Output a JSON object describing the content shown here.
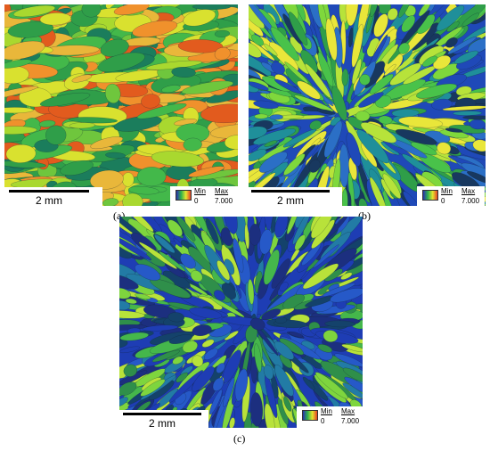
{
  "panels": [
    {
      "caption": "(a)",
      "scale_label": "2 mm",
      "legend": {
        "min_label": "Min",
        "max_label": "Max",
        "min_value": "0",
        "max_value": "7.000"
      },
      "palette": [
        "#2f9e49",
        "#43b84a",
        "#6fc63d",
        "#a9d82f",
        "#d9e12f",
        "#e9b73a",
        "#f0912c",
        "#e25b1e",
        "#1b7d5c"
      ]
    },
    {
      "caption": "(b)",
      "scale_label": "2 mm",
      "legend": {
        "min_label": "Min",
        "max_label": "Max",
        "min_value": "0",
        "max_value": "7.000"
      },
      "palette": [
        "#1f49b8",
        "#2b6fc6",
        "#2f9e49",
        "#49c24a",
        "#7fd83c",
        "#b7e33a",
        "#e9e63a",
        "#1f8f9a",
        "#18385f"
      ]
    },
    {
      "caption": "(c)",
      "scale_label": "2 mm",
      "legend": {
        "min_label": "Min",
        "max_label": "Max",
        "min_value": "0",
        "max_value": "7.000"
      },
      "palette": [
        "#1e3db4",
        "#2659c8",
        "#2f8f4a",
        "#45b74b",
        "#7ed53e",
        "#b8e23a",
        "#1c2f7f",
        "#227ba5",
        "#14426b"
      ]
    }
  ]
}
